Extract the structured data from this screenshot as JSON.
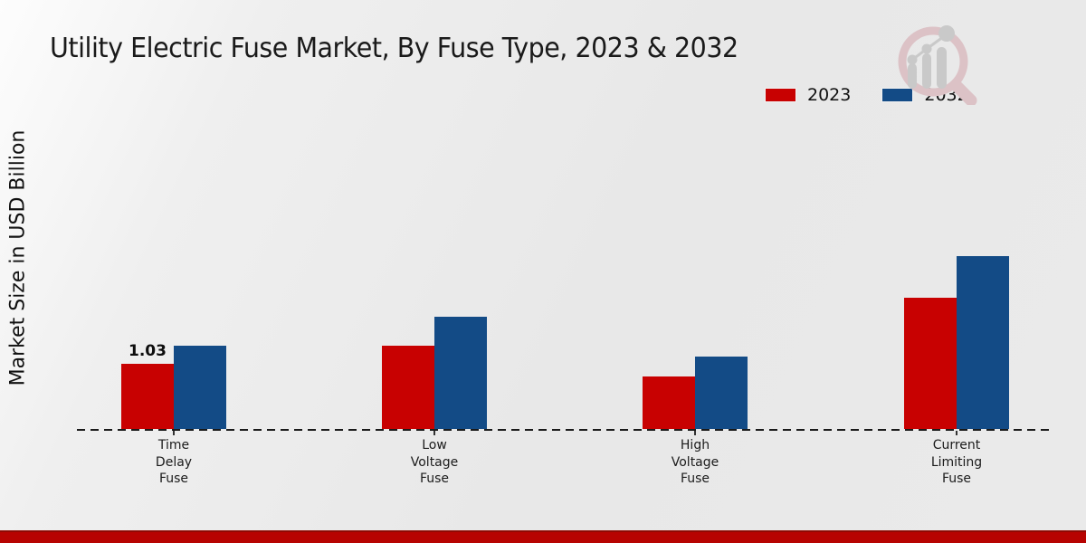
{
  "colors": {
    "series_2023": "#c80101",
    "series_2032": "#134b86",
    "footer_strip": "#b70301",
    "background": "#e9e9e9",
    "baseline": "#1a1a1a"
  },
  "chart_data": {
    "type": "bar",
    "title": "Utility Electric Fuse Market, By Fuse Type, 2023 & 2032",
    "xlabel": "",
    "ylabel": "Market Size in USD Billion",
    "categories": [
      "Time Delay Fuse",
      "Low Voltage Fuse",
      "High Voltage Fuse",
      "Current Limiting Fuse"
    ],
    "categories_display": [
      "Time\nDelay\nFuse",
      "Low\nVoltage\nFuse",
      "High\nVoltage\nFuse",
      "Current\nLimiting\nFuse"
    ],
    "series": [
      {
        "name": "2023",
        "color": "#c80101",
        "values": [
          1.03,
          1.32,
          0.83,
          2.07
        ]
      },
      {
        "name": "2032",
        "color": "#134b86",
        "values": [
          1.32,
          1.77,
          1.14,
          2.73
        ]
      }
    ],
    "value_labels": [
      {
        "series": "2023",
        "category": "Time Delay Fuse",
        "text": "1.03"
      }
    ],
    "ylim": [
      0,
      3
    ],
    "grid": false,
    "legend_position": "top-right",
    "baseline_style": "dashed",
    "y_axis_ticks_shown": false
  }
}
